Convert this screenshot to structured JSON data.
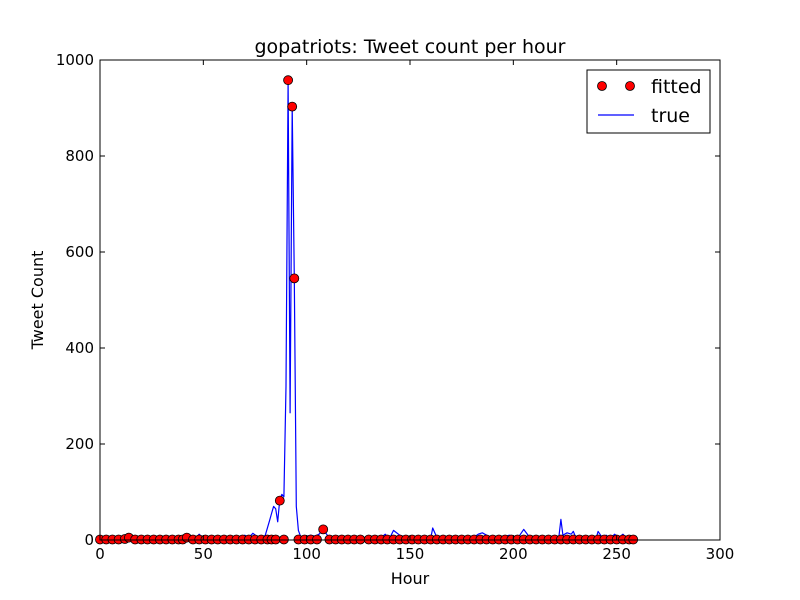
{
  "chart_data": {
    "type": "line",
    "title": "gopatriots: Tweet count per hour",
    "xlabel": "Hour",
    "ylabel": "Tweet Count",
    "xlim": [
      0,
      300
    ],
    "ylim": [
      0,
      1000
    ],
    "xticks": [
      0,
      50,
      100,
      150,
      200,
      250,
      300
    ],
    "yticks": [
      0,
      200,
      400,
      600,
      800,
      1000
    ],
    "grid": false,
    "legend_position": "top-right",
    "colors": {
      "fitted": "#ff0000",
      "true": "#0000ff"
    },
    "series": [
      {
        "name": "fitted",
        "style": "markers",
        "x": [
          0,
          3,
          6,
          9,
          12,
          14,
          17,
          20,
          23,
          26,
          29,
          32,
          35,
          38,
          40,
          42,
          45,
          48,
          51,
          54,
          57,
          60,
          63,
          66,
          69,
          72,
          75,
          78,
          81,
          83,
          85,
          87,
          89,
          91,
          93,
          94,
          96,
          99,
          102,
          105,
          108,
          111,
          114,
          117,
          120,
          123,
          126,
          130,
          133,
          136,
          139,
          142,
          145,
          148,
          151,
          154,
          157,
          160,
          163,
          166,
          169,
          172,
          175,
          178,
          181,
          184,
          187,
          190,
          193,
          196,
          199,
          202,
          205,
          208,
          211,
          214,
          217,
          220,
          223,
          226,
          229,
          232,
          235,
          238,
          241,
          244,
          247,
          250,
          253,
          256,
          258
        ],
        "y": [
          1,
          1,
          1,
          1,
          2,
          5,
          1,
          1,
          1,
          1,
          1,
          1,
          1,
          1,
          1,
          5,
          1,
          1,
          1,
          1,
          1,
          1,
          1,
          1,
          1,
          1,
          1,
          1,
          1,
          1,
          1,
          82,
          1,
          958,
          903,
          545,
          1,
          1,
          1,
          1,
          22,
          1,
          1,
          1,
          1,
          1,
          1,
          1,
          1,
          1,
          1,
          1,
          1,
          1,
          1,
          1,
          1,
          1,
          1,
          1,
          1,
          1,
          1,
          1,
          1,
          1,
          1,
          1,
          1,
          1,
          1,
          1,
          1,
          1,
          1,
          1,
          1,
          1,
          1,
          1,
          1,
          1,
          1,
          1,
          1,
          1,
          1,
          1,
          1,
          1,
          1
        ]
      },
      {
        "name": "true",
        "style": "line",
        "x": [
          0,
          5,
          10,
          14,
          18,
          25,
          30,
          35,
          40,
          42,
          46,
          48,
          50,
          55,
          58,
          60,
          63,
          66,
          68,
          70,
          72,
          74,
          76,
          78,
          80,
          82,
          83,
          84,
          85,
          86,
          87,
          88,
          89,
          90,
          91,
          92,
          93,
          94,
          95,
          96,
          97,
          98,
          100,
          102,
          104,
          106,
          108,
          110,
          112,
          115,
          118,
          120,
          125,
          130,
          135,
          138,
          140,
          142,
          145,
          150,
          155,
          158,
          160,
          161,
          163,
          165,
          170,
          175,
          180,
          183,
          185,
          190,
          195,
          198,
          200,
          202,
          205,
          208,
          210,
          215,
          220,
          222,
          223,
          224,
          226,
          228,
          229,
          230,
          235,
          240,
          241,
          243,
          245,
          247,
          249,
          251,
          253,
          255,
          258
        ],
        "y": [
          0,
          1,
          2,
          4,
          1,
          2,
          1,
          1,
          2,
          5,
          2,
          12,
          3,
          6,
          1,
          8,
          4,
          8,
          3,
          10,
          5,
          14,
          7,
          2,
          10,
          40,
          55,
          70,
          65,
          38,
          85,
          95,
          90,
          320,
          958,
          265,
          903,
          545,
          70,
          20,
          8,
          3,
          8,
          10,
          8,
          12,
          22,
          10,
          3,
          8,
          5,
          3,
          1,
          2,
          1,
          12,
          2,
          20,
          10,
          3,
          2,
          8,
          3,
          25,
          5,
          3,
          1,
          2,
          3,
          12,
          15,
          3,
          5,
          10,
          8,
          3,
          22,
          5,
          1,
          2,
          1,
          5,
          43,
          10,
          15,
          12,
          18,
          8,
          5,
          3,
          18,
          5,
          10,
          3,
          12,
          5,
          12,
          3,
          1
        ]
      }
    ]
  }
}
